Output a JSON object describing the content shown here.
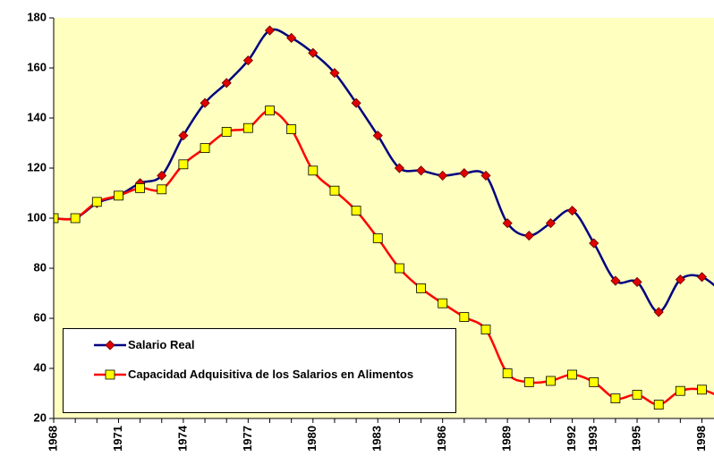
{
  "chart_data": {
    "type": "line",
    "categories": [
      "1968",
      null,
      null,
      "1971",
      null,
      null,
      "1974",
      null,
      null,
      "1977",
      null,
      null,
      "1980",
      null,
      null,
      "1983",
      null,
      null,
      "1986",
      null,
      null,
      "1989",
      null,
      null,
      "1992",
      "1993",
      null,
      "1995",
      null,
      null,
      "1998",
      null
    ],
    "series": [
      {
        "name": "Salario Real",
        "color": "#000080",
        "marker": "diamond",
        "marker_color": "#e00000",
        "values": [
          100,
          100,
          106,
          109,
          114,
          117,
          133,
          146,
          154,
          163,
          175,
          172,
          166,
          158,
          146,
          133,
          120,
          119,
          117,
          118,
          117,
          98,
          93,
          98,
          103,
          90,
          75,
          74.5,
          62.5,
          75.5,
          76.5,
          70
        ]
      },
      {
        "name": "Capacidad Adquisitiva de los Salarios en Alimentos",
        "color": "#ff0000",
        "marker": "square",
        "marker_color": "#ffff00",
        "values": [
          100,
          100,
          106.5,
          109,
          112,
          111.5,
          121.5,
          128,
          134.5,
          136,
          143,
          135.5,
          119,
          111,
          103,
          92,
          80,
          72,
          66,
          60.5,
          55.5,
          38,
          34.5,
          35,
          37.5,
          34.5,
          28,
          29.5,
          25.5,
          31,
          31.5,
          28
        ]
      }
    ],
    "ylim": [
      20,
      180
    ],
    "yticks": [
      20,
      40,
      60,
      80,
      100,
      120,
      140,
      160,
      180
    ],
    "grid": false,
    "legend": "lower left",
    "plot_background": "#ffffc0"
  }
}
